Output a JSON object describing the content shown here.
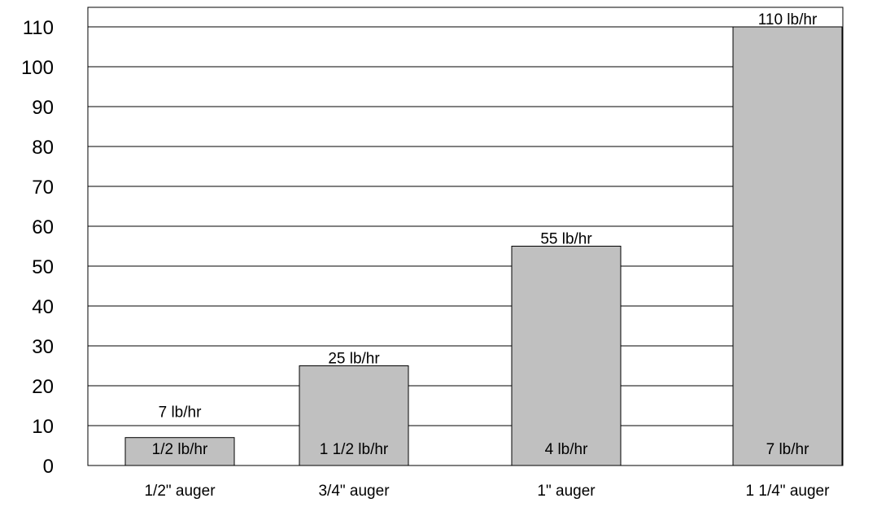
{
  "chart_data": {
    "type": "bar",
    "title": "",
    "xlabel": "",
    "ylabel": "",
    "categories": [
      "1/2\" auger",
      "3/4\" auger",
      "1\" auger",
      "1 1/4\" auger"
    ],
    "values": [
      7,
      25,
      55,
      110
    ],
    "top_labels": [
      "7 lb/hr",
      "25 lb/hr",
      "55 lb/hr",
      "110 lb/hr"
    ],
    "inner_labels": [
      "1/2 lb/hr",
      "1 1/2 lb/hr",
      "4 lb/hr",
      "7 lb/hr"
    ],
    "ylim": [
      0,
      115
    ],
    "yticks": [
      0,
      10,
      20,
      30,
      40,
      50,
      60,
      70,
      80,
      90,
      100,
      110
    ],
    "grid": true,
    "legend": "none",
    "colors": {
      "bar_fill": "#c0c0c0",
      "bar_stroke": "#000000",
      "grid": "#000000",
      "background": "#ffffff"
    }
  }
}
